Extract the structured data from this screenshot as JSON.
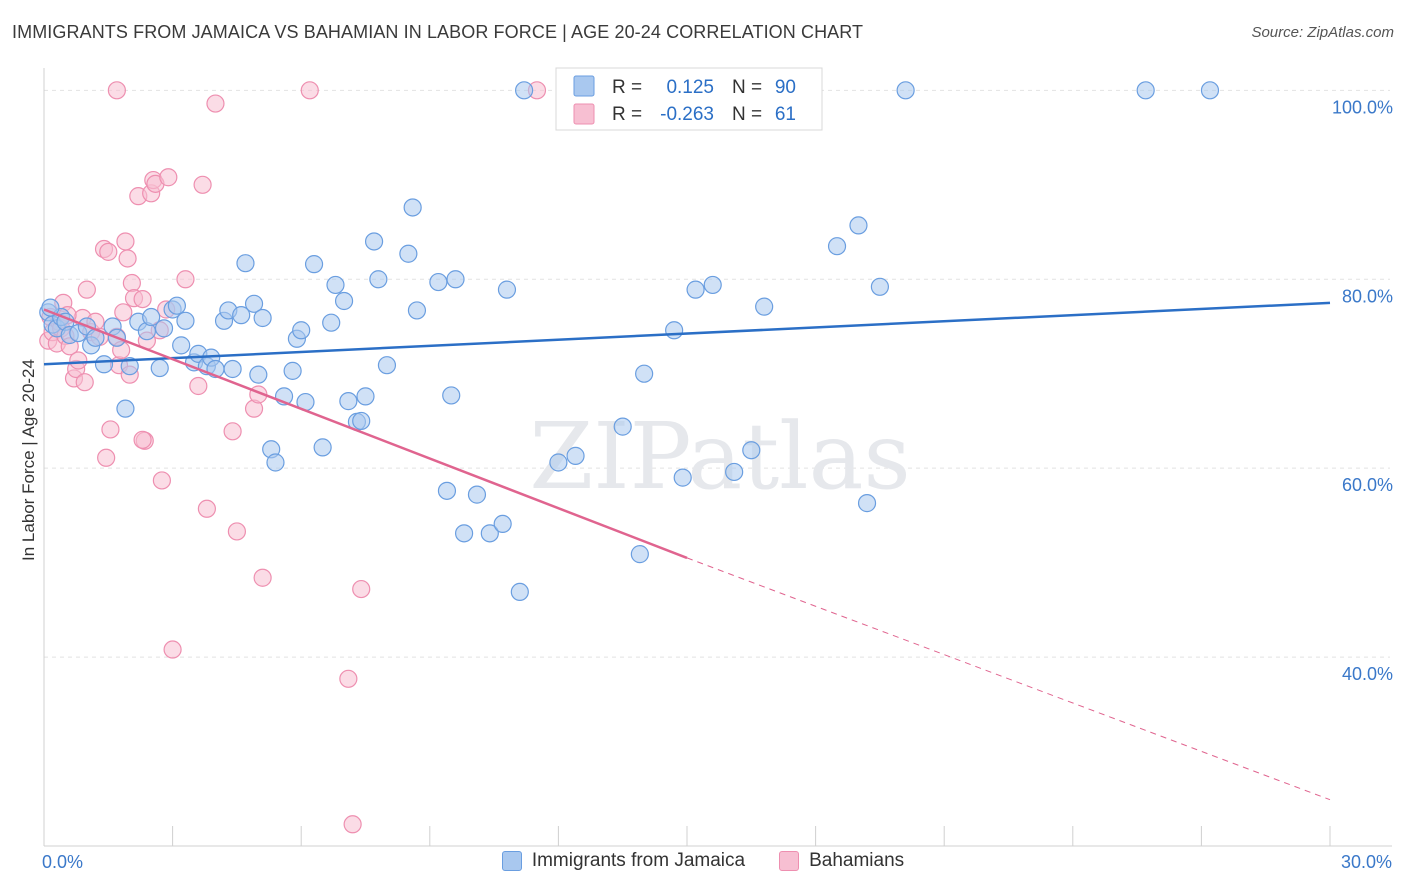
{
  "chart_data": {
    "type": "scatter",
    "title": "IMMIGRANTS FROM JAMAICA VS BAHAMIAN IN LABOR FORCE | AGE 20-24 CORRELATION CHART",
    "source": "Source: ZipAtlas.com",
    "ylabel": "In Labor Force | Age 20-24",
    "xlim": [
      0,
      30
    ],
    "ylim": [
      20,
      103
    ],
    "x_tick_labels": [
      "0.0%",
      "30.0%"
    ],
    "y_ticks": [
      40,
      60,
      80,
      100
    ],
    "y_tick_labels": [
      "40.0%",
      "60.0%",
      "80.0%",
      "100.0%"
    ],
    "watermark": "ZIPatlas",
    "legend": {
      "rows": [
        {
          "r_label": "R =",
          "r_value": "0.125",
          "n_label": "N =",
          "n_value": "90"
        },
        {
          "r_label": "R =",
          "r_value": "-0.263",
          "n_label": "N =",
          "n_value": "61"
        }
      ]
    },
    "series": [
      {
        "name": "Immigrants from Jamaica",
        "color": "#6a9ee0",
        "fill": "#a9c8ef",
        "line_color": "#2b6fc6",
        "trend": {
          "x0": 0,
          "y0": 71.0,
          "x1": 30,
          "y1": 77.5
        },
        "points": [
          [
            0.1,
            76.5
          ],
          [
            0.2,
            75.2
          ],
          [
            0.3,
            74.8
          ],
          [
            0.4,
            76.0
          ],
          [
            0.5,
            75.5
          ],
          [
            0.6,
            74.1
          ],
          [
            0.8,
            74.3
          ],
          [
            1.0,
            75.0
          ],
          [
            1.1,
            73.0
          ],
          [
            1.2,
            73.8
          ],
          [
            1.4,
            71.0
          ],
          [
            1.6,
            75.0
          ],
          [
            1.7,
            73.8
          ],
          [
            1.9,
            66.3
          ],
          [
            2.0,
            70.8
          ],
          [
            2.2,
            75.5
          ],
          [
            2.4,
            74.5
          ],
          [
            2.5,
            76.0
          ],
          [
            2.7,
            70.6
          ],
          [
            2.8,
            74.8
          ],
          [
            3.0,
            76.8
          ],
          [
            3.1,
            77.2
          ],
          [
            3.2,
            73.0
          ],
          [
            3.3,
            75.6
          ],
          [
            3.5,
            71.2
          ],
          [
            3.6,
            72.1
          ],
          [
            3.8,
            70.8
          ],
          [
            3.9,
            71.7
          ],
          [
            4.0,
            70.5
          ],
          [
            4.2,
            75.6
          ],
          [
            4.3,
            76.7
          ],
          [
            4.4,
            70.5
          ],
          [
            4.6,
            76.2
          ],
          [
            4.7,
            81.7
          ],
          [
            4.9,
            77.4
          ],
          [
            5.0,
            69.9
          ],
          [
            5.1,
            75.9
          ],
          [
            5.3,
            62.0
          ],
          [
            5.4,
            60.6
          ],
          [
            5.6,
            67.6
          ],
          [
            5.8,
            70.3
          ],
          [
            5.9,
            73.7
          ],
          [
            6.0,
            74.6
          ],
          [
            6.1,
            67.0
          ],
          [
            6.3,
            81.6
          ],
          [
            6.5,
            62.2
          ],
          [
            6.7,
            75.4
          ],
          [
            6.8,
            79.4
          ],
          [
            7.0,
            77.7
          ],
          [
            7.1,
            67.1
          ],
          [
            7.3,
            64.9
          ],
          [
            7.4,
            65.0
          ],
          [
            7.5,
            67.6
          ],
          [
            7.7,
            84.0
          ],
          [
            7.8,
            80.0
          ],
          [
            8.0,
            70.9
          ],
          [
            8.5,
            82.7
          ],
          [
            8.6,
            87.6
          ],
          [
            8.7,
            76.7
          ],
          [
            9.2,
            79.7
          ],
          [
            9.4,
            57.6
          ],
          [
            9.5,
            67.7
          ],
          [
            9.6,
            80.0
          ],
          [
            9.8,
            53.1
          ],
          [
            10.1,
            57.2
          ],
          [
            10.4,
            53.1
          ],
          [
            10.7,
            54.1
          ],
          [
            10.8,
            78.9
          ],
          [
            11.1,
            46.9
          ],
          [
            11.2,
            100.0
          ],
          [
            12.0,
            60.6
          ],
          [
            12.4,
            61.3
          ],
          [
            13.5,
            64.4
          ],
          [
            13.9,
            50.9
          ],
          [
            14.0,
            70.0
          ],
          [
            14.7,
            74.6
          ],
          [
            14.9,
            59.0
          ],
          [
            15.2,
            78.9
          ],
          [
            15.6,
            79.4
          ],
          [
            16.1,
            59.6
          ],
          [
            16.5,
            61.9
          ],
          [
            16.8,
            77.1
          ],
          [
            18.5,
            83.5
          ],
          [
            19.0,
            85.7
          ],
          [
            19.2,
            56.3
          ],
          [
            19.5,
            79.2
          ],
          [
            20.1,
            100.0
          ],
          [
            25.7,
            100.0
          ],
          [
            27.2,
            100.0
          ],
          [
            0.15,
            77.0
          ]
        ]
      },
      {
        "name": "Bahamians",
        "color": "#ee8fb0",
        "fill": "#f7bfd2",
        "line_color": "#e0648f",
        "trend": {
          "x0": 0,
          "y0": 76.8,
          "x1": 15.0,
          "y1": 50.5
        },
        "trend_dashed": {
          "x0": 15.0,
          "y0": 50.5,
          "x1": 30,
          "y1": 24.9
        },
        "points": [
          [
            0.1,
            73.5
          ],
          [
            0.15,
            76.0
          ],
          [
            0.2,
            74.4
          ],
          [
            0.3,
            73.2
          ],
          [
            0.35,
            75.5
          ],
          [
            0.4,
            74.8
          ],
          [
            0.45,
            77.5
          ],
          [
            0.5,
            74.0
          ],
          [
            0.6,
            72.9
          ],
          [
            0.7,
            69.5
          ],
          [
            0.75,
            70.5
          ],
          [
            0.8,
            71.4
          ],
          [
            0.9,
            75.9
          ],
          [
            0.95,
            69.1
          ],
          [
            1.0,
            78.9
          ],
          [
            1.1,
            74.4
          ],
          [
            1.2,
            75.5
          ],
          [
            1.3,
            73.9
          ],
          [
            1.4,
            83.2
          ],
          [
            1.45,
            61.1
          ],
          [
            1.5,
            82.9
          ],
          [
            1.55,
            64.1
          ],
          [
            1.7,
            73.9
          ],
          [
            1.75,
            70.9
          ],
          [
            1.8,
            72.5
          ],
          [
            1.85,
            76.5
          ],
          [
            1.9,
            84.0
          ],
          [
            1.95,
            82.2
          ],
          [
            2.0,
            69.9
          ],
          [
            2.05,
            79.6
          ],
          [
            2.1,
            78.0
          ],
          [
            2.2,
            88.8
          ],
          [
            2.3,
            77.9
          ],
          [
            2.35,
            62.9
          ],
          [
            2.4,
            73.5
          ],
          [
            2.5,
            89.1
          ],
          [
            2.55,
            90.5
          ],
          [
            2.6,
            90.1
          ],
          [
            2.7,
            74.6
          ],
          [
            2.75,
            58.7
          ],
          [
            2.85,
            76.8
          ],
          [
            2.9,
            90.8
          ],
          [
            3.0,
            40.8
          ],
          [
            3.3,
            80.0
          ],
          [
            3.6,
            68.7
          ],
          [
            3.7,
            90.0
          ],
          [
            3.8,
            55.7
          ],
          [
            4.0,
            98.6
          ],
          [
            4.4,
            63.9
          ],
          [
            4.5,
            53.3
          ],
          [
            4.9,
            66.3
          ],
          [
            5.0,
            67.8
          ],
          [
            5.1,
            48.4
          ],
          [
            6.2,
            100.0
          ],
          [
            7.1,
            37.7
          ],
          [
            7.2,
            22.3
          ],
          [
            7.4,
            47.2
          ],
          [
            11.5,
            100.0
          ],
          [
            1.7,
            100.0
          ],
          [
            0.55,
            76.2
          ],
          [
            2.3,
            63.0
          ]
        ]
      }
    ]
  }
}
